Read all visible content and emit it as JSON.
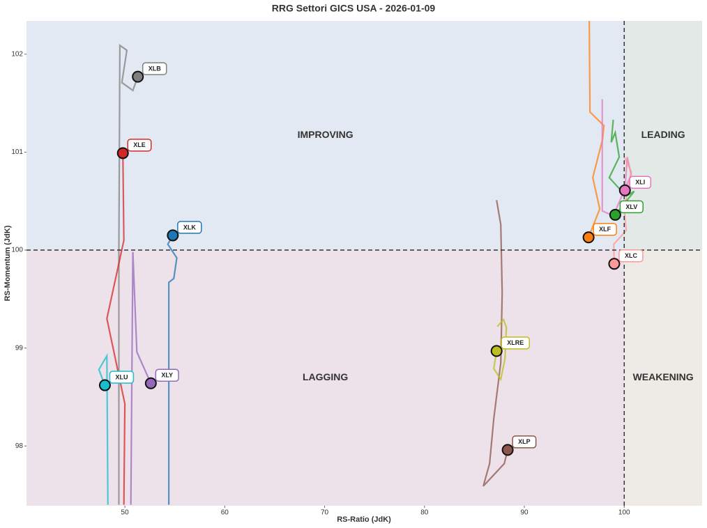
{
  "chart_data": {
    "type": "rrg",
    "title": "RRG Settori GICS USA - 2026-01-09",
    "xlabel": "RS-Ratio (JdK)",
    "ylabel": "RS-Momentum (JdK)",
    "xlim": [
      40.15,
      107.8
    ],
    "ylim": [
      97.39,
      102.34
    ],
    "xticks": [
      50,
      60,
      70,
      80,
      90,
      100
    ],
    "yticks": [
      98,
      99,
      100,
      101,
      102
    ],
    "center": [
      100,
      100
    ],
    "quadrants": [
      {
        "label": "IMPROVING",
        "color": "#2e3192",
        "background": "#e2e9f2"
      },
      {
        "label": "LEADING",
        "color": "#2e8b2e",
        "background": "#e3e9e7"
      },
      {
        "label": "LAGGING",
        "color": "#a12a35",
        "background": "#ede2e9"
      },
      {
        "label": "WEAKENING",
        "color": "#f5a040",
        "background": "#eeeae5"
      }
    ],
    "series": [
      {
        "name": "XLB",
        "color": "#7f7f7f",
        "x": [
          49.4,
          49.4,
          49.5,
          50.2,
          49.7,
          50.8,
          51.3
        ],
        "y": [
          97.4,
          100.0,
          102.09,
          102.04,
          101.71,
          101.63,
          101.77
        ]
      },
      {
        "name": "XLE",
        "color": "#d62728",
        "x": [
          49.9,
          50.0,
          48.2,
          49.9,
          49.8
        ],
        "y": [
          97.4,
          98.43,
          99.3,
          100.1,
          100.99
        ]
      },
      {
        "name": "XLK",
        "color": "#1f77b4",
        "x": [
          54.4,
          54.4,
          54.9,
          55.2,
          54.3,
          54.8
        ],
        "y": [
          97.4,
          99.67,
          99.71,
          99.92,
          100.06,
          100.15
        ]
      },
      {
        "name": "XLU",
        "color": "#17becf",
        "x": [
          48.3,
          48.2,
          47.4,
          48.0
        ],
        "y": [
          97.4,
          98.92,
          98.78,
          98.62
        ]
      },
      {
        "name": "XLY",
        "color": "#9467bd",
        "x": [
          50.6,
          50.8,
          51.2,
          52.6
        ],
        "y": [
          97.4,
          99.98,
          98.96,
          98.64
        ]
      },
      {
        "name": "XLP",
        "color": "#8c564b",
        "x": [
          87.22,
          87.64,
          87.78,
          87.64,
          86.94,
          86.52,
          85.89,
          87.99,
          88.33
        ],
        "y": [
          100.51,
          100.26,
          99.56,
          98.85,
          98.28,
          97.82,
          97.59,
          97.82,
          97.96
        ]
      },
      {
        "name": "XLRE",
        "color": "#bcbd22",
        "x": [
          87.29,
          87.92,
          88.2,
          88.06,
          87.64,
          86.94,
          87.22
        ],
        "y": [
          99.22,
          99.29,
          99.21,
          98.89,
          98.68,
          98.79,
          98.97
        ]
      },
      {
        "name": "XLF",
        "color": "#ff7f0e",
        "x": [
          96.5,
          96.57,
          97.97,
          97.83,
          96.85,
          97.55,
          96.43
        ],
        "y": [
          102.34,
          101.41,
          101.27,
          101.13,
          100.74,
          100.42,
          100.13
        ]
      },
      {
        "name": "XLI",
        "color": "#e377c2",
        "x": [
          97.8,
          97.8,
          98.9,
          100.7,
          100.3,
          100.07
        ],
        "y": [
          101.54,
          100.4,
          100.35,
          100.77,
          100.95,
          100.61
        ]
      },
      {
        "name": "XLV",
        "color": "#2ca02c",
        "x": [
          98.9,
          98.7,
          99.1,
          99.5,
          98.5,
          100.2,
          101.0,
          99.1
        ],
        "y": [
          101.33,
          101.1,
          101.2,
          100.95,
          100.74,
          100.55,
          100.6,
          100.36
        ]
      },
      {
        "name": "XLC",
        "color": "#ff9896",
        "x": [
          100.0,
          100.7,
          100.0,
          100.2,
          98.95,
          99.0
        ],
        "y": [
          100.95,
          100.8,
          100.42,
          100.2,
          100.06,
          99.86
        ]
      }
    ]
  }
}
